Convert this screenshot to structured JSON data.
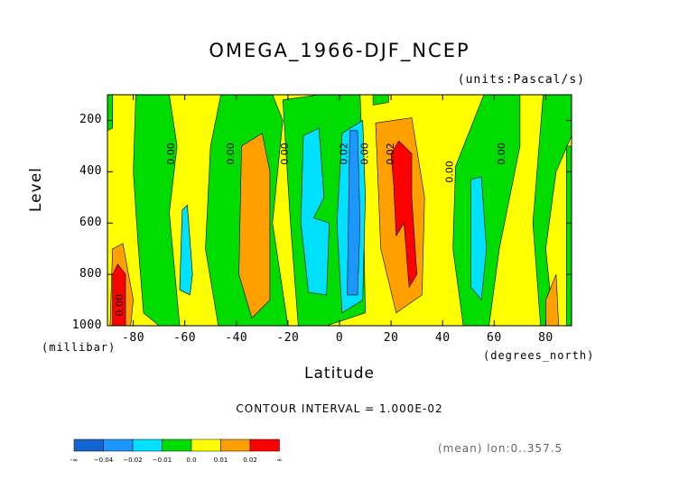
{
  "title": "OMEGA_1966-DJF_NCEP",
  "units": "(units:Pascal/s)",
  "footer": {
    "contour_interval": "CONTOUR INTERVAL = 1.000E-02",
    "mean": "(mean) lon:0..357.5"
  },
  "colors": {
    "lt_neg_004": "#1464d2",
    "neg_004_002": "#1e96ff",
    "neg_002_001": "#00e1ff",
    "neg_001_0": "#00dc00",
    "0_001": "#ffff00",
    "001_002": "#ffa000",
    "gt_002": "#ff0000"
  },
  "chart_data": {
    "type": "heatmap",
    "title": "OMEGA_1966-DJF_NCEP",
    "xlabel": "Latitude",
    "ylabel": "Level",
    "x_unit": "(degrees_north)",
    "y_unit": "(millibar)",
    "xlim": [
      -90,
      90
    ],
    "ylim": [
      1000,
      100
    ],
    "xticks": [
      "-80",
      "-60",
      "-40",
      "-20",
      "0",
      "20",
      "40",
      "60",
      "80"
    ],
    "xtick_values": [
      -80,
      -60,
      -40,
      -20,
      0,
      20,
      40,
      60,
      80
    ],
    "yticks": [
      "200",
      "400",
      "600",
      "800",
      "1000"
    ],
    "ytick_values": [
      200,
      400,
      600,
      800,
      1000
    ],
    "contour_labels": [
      {
        "text": "0.00",
        "x": -64,
        "y": 330
      },
      {
        "text": "0.00",
        "x": -41,
        "y": 330
      },
      {
        "text": "0.00",
        "x": -20,
        "y": 330
      },
      {
        "text": "0.02",
        "x": 3,
        "y": 330
      },
      {
        "text": "0.00",
        "x": 11,
        "y": 330
      },
      {
        "text": "0.02",
        "x": 21,
        "y": 330
      },
      {
        "text": "0.00",
        "x": 44,
        "y": 400
      },
      {
        "text": "0.00",
        "x": 64,
        "y": 330
      },
      {
        "text": "0.00",
        "x": -84,
        "y": 920
      }
    ],
    "colorbar": {
      "levels": [
        "-∞",
        "−0.04",
        "−0.02",
        "−0.01",
        "0.0",
        "0.01",
        "0.02",
        "∞"
      ]
    },
    "regions_description_values": [
      {
        "lat_range": [
          -90,
          -88
        ],
        "level_range": [
          100,
          700
        ],
        "value_sign": "positive small"
      },
      {
        "lat_range": [
          -80,
          -66
        ],
        "level_range": [
          100,
          1000
        ],
        "value": "negative small"
      },
      {
        "lat_range": [
          -38,
          -26
        ],
        "level_range": [
          250,
          960
        ],
        "value": "0.01-0.02"
      },
      {
        "lat_range": [
          -12,
          -4
        ],
        "level_range": [
          230,
          880
        ],
        "value": "-0.02 to -0.01"
      },
      {
        "lat_range": [
          4,
          8
        ],
        "level_range": [
          240,
          880
        ],
        "value": "-0.04 to -0.02"
      },
      {
        "lat_range": [
          14,
          32
        ],
        "level_range": [
          190,
          950
        ],
        "value": "0.01-0.02"
      },
      {
        "lat_range": [
          20,
          30
        ],
        "level_range": [
          280,
          850
        ],
        "value": ">0.02"
      }
    ]
  }
}
